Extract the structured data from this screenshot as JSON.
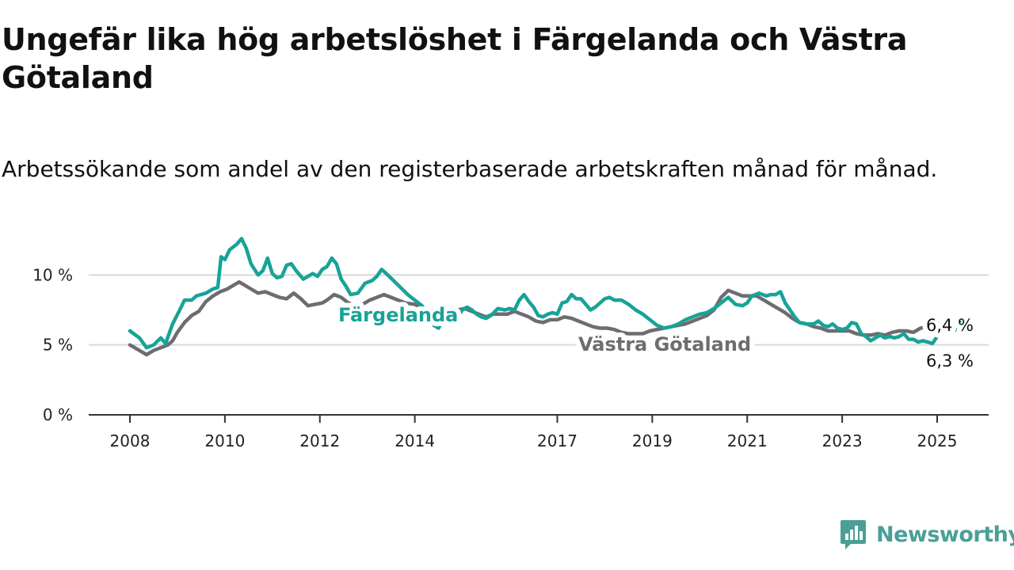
{
  "title": "Ungefär lika hög arbetslöshet i Färgelanda och Västra Götaland",
  "subtitle": "Arbetssökande som andel av den registerbaserade arbetskraften månad för månad.",
  "brand": {
    "name": "Newsworthy",
    "icon": "newsworthy-logo-icon",
    "color": "#4a9f97"
  },
  "chart_data": {
    "type": "line",
    "xlim": [
      2008,
      2025.5
    ],
    "ylim": [
      0,
      12
    ],
    "yticks": [
      0,
      5,
      10
    ],
    "ytick_labels": [
      "0 %",
      "5 %",
      "10 %"
    ],
    "xticks": [
      2008,
      2010,
      2012,
      2014,
      2017,
      2019,
      2021,
      2023,
      2025
    ],
    "xtick_labels": [
      "2008",
      "2010",
      "2012",
      "2014",
      "2017",
      "2019",
      "2021",
      "2023",
      "2025"
    ],
    "grid": "horizontal",
    "legend": "inline labels on lines",
    "series": [
      {
        "name": "Färgelanda",
        "color": "#17a398",
        "end_label": "6,3 %",
        "points": [
          [
            2008.0,
            6.0
          ],
          [
            2008.2,
            5.5
          ],
          [
            2008.35,
            4.8
          ],
          [
            2008.5,
            5.0
          ],
          [
            2008.65,
            5.5
          ],
          [
            2008.75,
            5.1
          ],
          [
            2008.9,
            6.5
          ],
          [
            2009.05,
            7.5
          ],
          [
            2009.15,
            8.2
          ],
          [
            2009.3,
            8.2
          ],
          [
            2009.4,
            8.5
          ],
          [
            2009.6,
            8.7
          ],
          [
            2009.75,
            9.0
          ],
          [
            2009.85,
            9.1
          ],
          [
            2009.92,
            11.3
          ],
          [
            2010.0,
            11.1
          ],
          [
            2010.1,
            11.8
          ],
          [
            2010.25,
            12.2
          ],
          [
            2010.35,
            12.6
          ],
          [
            2010.45,
            11.9
          ],
          [
            2010.55,
            10.8
          ],
          [
            2010.7,
            10.0
          ],
          [
            2010.8,
            10.3
          ],
          [
            2010.9,
            11.2
          ],
          [
            2011.0,
            10.1
          ],
          [
            2011.1,
            9.8
          ],
          [
            2011.2,
            9.9
          ],
          [
            2011.3,
            10.7
          ],
          [
            2011.4,
            10.8
          ],
          [
            2011.5,
            10.3
          ],
          [
            2011.65,
            9.7
          ],
          [
            2011.75,
            9.9
          ],
          [
            2011.85,
            10.1
          ],
          [
            2011.95,
            9.9
          ],
          [
            2012.05,
            10.4
          ],
          [
            2012.15,
            10.6
          ],
          [
            2012.25,
            11.2
          ],
          [
            2012.35,
            10.8
          ],
          [
            2012.45,
            9.7
          ],
          [
            2012.55,
            9.2
          ],
          [
            2012.65,
            8.6
          ],
          [
            2012.8,
            8.7
          ],
          [
            2012.95,
            9.4
          ],
          [
            2013.1,
            9.6
          ],
          [
            2013.2,
            9.9
          ],
          [
            2013.3,
            10.4
          ],
          [
            2013.4,
            10.1
          ],
          [
            2013.55,
            9.6
          ],
          [
            2013.7,
            9.1
          ],
          [
            2013.85,
            8.6
          ],
          [
            2014.0,
            8.2
          ],
          [
            2014.15,
            7.8
          ],
          [
            2014.3,
            7.2
          ],
          [
            2014.4,
            6.4
          ],
          [
            2014.5,
            6.2
          ],
          [
            2014.6,
            6.8
          ],
          [
            2014.7,
            7.0
          ],
          [
            2014.8,
            6.8
          ],
          [
            2014.9,
            7.0
          ],
          [
            2015.0,
            7.5
          ],
          [
            2015.1,
            7.7
          ],
          [
            2015.2,
            7.5
          ],
          [
            2015.3,
            7.2
          ],
          [
            2015.4,
            7.0
          ],
          [
            2015.5,
            6.9
          ],
          [
            2015.6,
            7.1
          ],
          [
            2015.75,
            7.6
          ],
          [
            2015.9,
            7.5
          ],
          [
            2016.0,
            7.6
          ],
          [
            2016.1,
            7.5
          ],
          [
            2016.2,
            8.2
          ],
          [
            2016.3,
            8.6
          ],
          [
            2016.4,
            8.1
          ],
          [
            2016.5,
            7.7
          ],
          [
            2016.6,
            7.1
          ],
          [
            2016.7,
            7.0
          ],
          [
            2016.8,
            7.2
          ],
          [
            2016.9,
            7.3
          ],
          [
            2017.0,
            7.2
          ],
          [
            2017.1,
            8.0
          ],
          [
            2017.2,
            8.1
          ],
          [
            2017.3,
            8.6
          ],
          [
            2017.4,
            8.3
          ],
          [
            2017.5,
            8.3
          ],
          [
            2017.6,
            7.9
          ],
          [
            2017.7,
            7.5
          ],
          [
            2017.8,
            7.7
          ],
          [
            2017.9,
            8.0
          ],
          [
            2018.0,
            8.3
          ],
          [
            2018.1,
            8.4
          ],
          [
            2018.2,
            8.2
          ],
          [
            2018.35,
            8.2
          ],
          [
            2018.5,
            7.9
          ],
          [
            2018.65,
            7.5
          ],
          [
            2018.8,
            7.2
          ],
          [
            2018.95,
            6.8
          ],
          [
            2019.1,
            6.4
          ],
          [
            2019.25,
            6.2
          ],
          [
            2019.4,
            6.3
          ],
          [
            2019.55,
            6.5
          ],
          [
            2019.7,
            6.8
          ],
          [
            2019.85,
            7.0
          ],
          [
            2020.0,
            7.2
          ],
          [
            2020.15,
            7.3
          ],
          [
            2020.3,
            7.6
          ],
          [
            2020.45,
            8.0
          ],
          [
            2020.6,
            8.4
          ],
          [
            2020.75,
            7.9
          ],
          [
            2020.9,
            7.8
          ],
          [
            2021.0,
            8.0
          ],
          [
            2021.1,
            8.5
          ],
          [
            2021.25,
            8.7
          ],
          [
            2021.4,
            8.5
          ],
          [
            2021.5,
            8.6
          ],
          [
            2021.6,
            8.6
          ],
          [
            2021.7,
            8.8
          ],
          [
            2021.8,
            8.0
          ],
          [
            2021.9,
            7.5
          ],
          [
            2022.0,
            7.0
          ],
          [
            2022.1,
            6.6
          ],
          [
            2022.25,
            6.5
          ],
          [
            2022.4,
            6.5
          ],
          [
            2022.5,
            6.7
          ],
          [
            2022.6,
            6.4
          ],
          [
            2022.7,
            6.3
          ],
          [
            2022.8,
            6.5
          ],
          [
            2022.9,
            6.2
          ],
          [
            2023.0,
            6.1
          ],
          [
            2023.1,
            6.2
          ],
          [
            2023.2,
            6.6
          ],
          [
            2023.3,
            6.5
          ],
          [
            2023.4,
            5.8
          ],
          [
            2023.5,
            5.6
          ],
          [
            2023.6,
            5.3
          ],
          [
            2023.7,
            5.5
          ],
          [
            2023.8,
            5.7
          ],
          [
            2023.9,
            5.5
          ],
          [
            2024.0,
            5.6
          ],
          [
            2024.1,
            5.5
          ],
          [
            2024.2,
            5.6
          ],
          [
            2024.3,
            5.8
          ],
          [
            2024.4,
            5.4
          ],
          [
            2024.5,
            5.4
          ],
          [
            2024.6,
            5.2
          ],
          [
            2024.7,
            5.3
          ],
          [
            2024.8,
            5.2
          ],
          [
            2024.9,
            5.1
          ],
          [
            2025.0,
            5.6
          ],
          [
            2025.1,
            6.1
          ],
          [
            2025.2,
            6.3
          ]
        ]
      },
      {
        "name": "Västra Götaland",
        "color": "#6e6c70",
        "end_label": "6,4 %",
        "points": [
          [
            2008.0,
            5.0
          ],
          [
            2008.2,
            4.6
          ],
          [
            2008.35,
            4.3
          ],
          [
            2008.5,
            4.6
          ],
          [
            2008.65,
            4.8
          ],
          [
            2008.8,
            5.0
          ],
          [
            2008.9,
            5.3
          ],
          [
            2009.0,
            5.9
          ],
          [
            2009.15,
            6.6
          ],
          [
            2009.3,
            7.1
          ],
          [
            2009.45,
            7.4
          ],
          [
            2009.6,
            8.1
          ],
          [
            2009.75,
            8.5
          ],
          [
            2009.9,
            8.8
          ],
          [
            2010.05,
            9.0
          ],
          [
            2010.2,
            9.3
          ],
          [
            2010.3,
            9.5
          ],
          [
            2010.4,
            9.3
          ],
          [
            2010.55,
            9.0
          ],
          [
            2010.7,
            8.7
          ],
          [
            2010.85,
            8.8
          ],
          [
            2011.0,
            8.6
          ],
          [
            2011.15,
            8.4
          ],
          [
            2011.3,
            8.3
          ],
          [
            2011.45,
            8.7
          ],
          [
            2011.6,
            8.3
          ],
          [
            2011.75,
            7.8
          ],
          [
            2011.9,
            7.9
          ],
          [
            2012.05,
            8.0
          ],
          [
            2012.15,
            8.2
          ],
          [
            2012.3,
            8.6
          ],
          [
            2012.45,
            8.4
          ],
          [
            2012.6,
            8.0
          ],
          [
            2012.75,
            7.8
          ],
          [
            2012.9,
            7.9
          ],
          [
            2013.05,
            8.2
          ],
          [
            2013.2,
            8.4
          ],
          [
            2013.35,
            8.6
          ],
          [
            2013.5,
            8.4
          ],
          [
            2013.65,
            8.2
          ],
          [
            2013.8,
            8.0
          ],
          [
            2014.0,
            7.9
          ],
          [
            2014.15,
            7.6
          ],
          [
            2014.3,
            7.4
          ],
          [
            2014.45,
            7.2
          ],
          [
            2014.6,
            7.4
          ],
          [
            2014.75,
            7.5
          ],
          [
            2014.9,
            7.5
          ],
          [
            2015.05,
            7.6
          ],
          [
            2015.2,
            7.4
          ],
          [
            2015.35,
            7.2
          ],
          [
            2015.5,
            7.0
          ],
          [
            2015.65,
            7.2
          ],
          [
            2015.8,
            7.2
          ],
          [
            2015.95,
            7.2
          ],
          [
            2016.1,
            7.4
          ],
          [
            2016.25,
            7.2
          ],
          [
            2016.4,
            7.0
          ],
          [
            2016.55,
            6.7
          ],
          [
            2016.7,
            6.6
          ],
          [
            2016.85,
            6.8
          ],
          [
            2017.0,
            6.8
          ],
          [
            2017.15,
            7.0
          ],
          [
            2017.3,
            6.9
          ],
          [
            2017.45,
            6.7
          ],
          [
            2017.6,
            6.5
          ],
          [
            2017.75,
            6.3
          ],
          [
            2017.9,
            6.2
          ],
          [
            2018.05,
            6.2
          ],
          [
            2018.2,
            6.1
          ],
          [
            2018.35,
            5.9
          ],
          [
            2018.5,
            5.8
          ],
          [
            2018.65,
            5.8
          ],
          [
            2018.8,
            5.8
          ],
          [
            2018.95,
            6.0
          ],
          [
            2019.1,
            6.1
          ],
          [
            2019.25,
            6.2
          ],
          [
            2019.4,
            6.3
          ],
          [
            2019.55,
            6.4
          ],
          [
            2019.7,
            6.5
          ],
          [
            2019.85,
            6.7
          ],
          [
            2020.0,
            6.9
          ],
          [
            2020.15,
            7.1
          ],
          [
            2020.3,
            7.5
          ],
          [
            2020.45,
            8.4
          ],
          [
            2020.6,
            8.9
          ],
          [
            2020.75,
            8.7
          ],
          [
            2020.9,
            8.5
          ],
          [
            2021.05,
            8.5
          ],
          [
            2021.2,
            8.5
          ],
          [
            2021.35,
            8.2
          ],
          [
            2021.5,
            7.9
          ],
          [
            2021.65,
            7.6
          ],
          [
            2021.8,
            7.3
          ],
          [
            2021.95,
            6.9
          ],
          [
            2022.1,
            6.6
          ],
          [
            2022.25,
            6.5
          ],
          [
            2022.4,
            6.3
          ],
          [
            2022.55,
            6.2
          ],
          [
            2022.7,
            6.0
          ],
          [
            2022.85,
            6.0
          ],
          [
            2023.0,
            6.0
          ],
          [
            2023.15,
            6.0
          ],
          [
            2023.3,
            5.8
          ],
          [
            2023.45,
            5.7
          ],
          [
            2023.6,
            5.7
          ],
          [
            2023.75,
            5.8
          ],
          [
            2023.9,
            5.7
          ],
          [
            2024.05,
            5.9
          ],
          [
            2024.2,
            6.0
          ],
          [
            2024.35,
            6.0
          ],
          [
            2024.5,
            5.9
          ],
          [
            2024.65,
            6.2
          ],
          [
            2024.8,
            6.3
          ],
          [
            2024.95,
            6.3
          ],
          [
            2025.05,
            6.5
          ],
          [
            2025.15,
            6.6
          ],
          [
            2025.25,
            6.4
          ]
        ]
      }
    ]
  }
}
